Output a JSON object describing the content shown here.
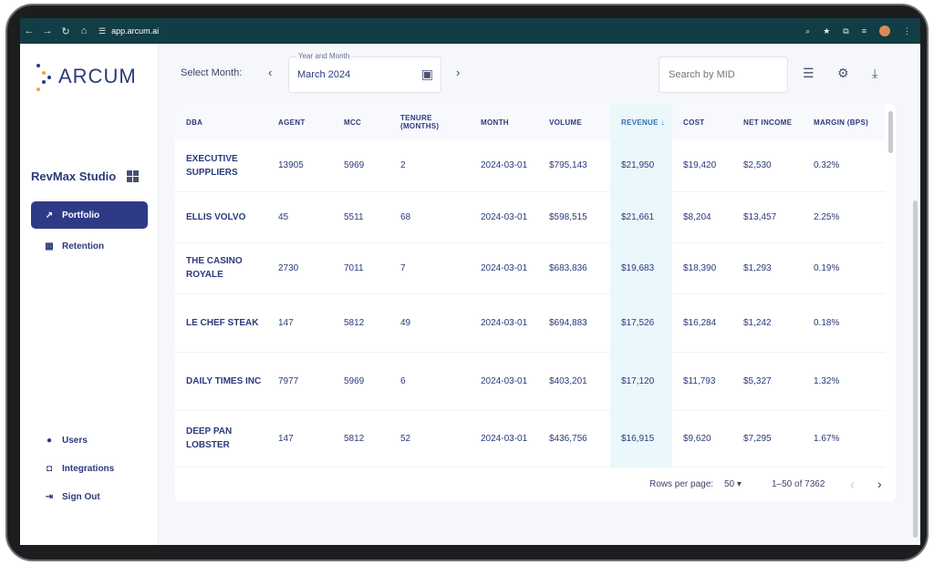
{
  "browser": {
    "url": "app.arcum.ai",
    "icons": [
      "back-icon",
      "forward-icon",
      "reload-icon",
      "home-icon",
      "site-info-icon",
      "zoom-icon",
      "star-icon",
      "extensions-icon",
      "media-icon",
      "profile-avatar",
      "more-icon"
    ]
  },
  "brand": {
    "logo_text": "ARCUM",
    "accent": "#2b3a7a",
    "dots": [
      "#2b3a7a",
      "#f2a33a",
      "#2b3a7a",
      "#f2a33a"
    ]
  },
  "sidebar": {
    "studio_name": "RevMax Studio",
    "nav": [
      {
        "label": "Portfolio",
        "icon": "trend-icon",
        "active": true
      },
      {
        "label": "Retention",
        "icon": "bar-chart-icon",
        "active": false
      }
    ],
    "bottom": [
      {
        "label": "Users",
        "icon": "user-icon"
      },
      {
        "label": "Integrations",
        "icon": "integrations-icon"
      },
      {
        "label": "Sign Out",
        "icon": "sign-out-icon"
      }
    ]
  },
  "toolbar": {
    "select_label": "Select Month:",
    "month_field_label": "Year and Month",
    "month_value": "March 2024",
    "search_placeholder": "Search by MID"
  },
  "table": {
    "columns": [
      {
        "key": "dba",
        "label": "DBA"
      },
      {
        "key": "agent",
        "label": "AGENT"
      },
      {
        "key": "mcc",
        "label": "MCC"
      },
      {
        "key": "tenure",
        "label": "TENURE (MONTHS)"
      },
      {
        "key": "month",
        "label": "MONTH"
      },
      {
        "key": "volume",
        "label": "VOLUME"
      },
      {
        "key": "revenue",
        "label": "REVENUE",
        "sorted": "desc"
      },
      {
        "key": "cost",
        "label": "COST"
      },
      {
        "key": "net_income",
        "label": "NET INCOME"
      },
      {
        "key": "margin",
        "label": "MARGIN (BPS)"
      }
    ],
    "rows": [
      {
        "dba": "EXECUTIVE SUPPLIERS",
        "agent": "13905",
        "mcc": "5969",
        "tenure": "2",
        "month": "2024-03-01",
        "volume": "$795,143",
        "revenue": "$21,950",
        "cost": "$19,420",
        "net_income": "$2,530",
        "margin": "0.32%"
      },
      {
        "dba": "ELLIS VOLVO",
        "agent": "45",
        "mcc": "5511",
        "tenure": "68",
        "month": "2024-03-01",
        "volume": "$598,515",
        "revenue": "$21,661",
        "cost": "$8,204",
        "net_income": "$13,457",
        "margin": "2.25%"
      },
      {
        "dba": "THE CASINO ROYALE",
        "agent": "2730",
        "mcc": "7011",
        "tenure": "7",
        "month": "2024-03-01",
        "volume": "$683,836",
        "revenue": "$19,683",
        "cost": "$18,390",
        "net_income": "$1,293",
        "margin": "0.19%"
      },
      {
        "dba": "LE CHEF STEAK",
        "agent": "147",
        "mcc": "5812",
        "tenure": "49",
        "month": "2024-03-01",
        "volume": "$694,883",
        "revenue": "$17,526",
        "cost": "$16,284",
        "net_income": "$1,242",
        "margin": "0.18%"
      },
      {
        "dba": "DAILY TIMES INC",
        "agent": "7977",
        "mcc": "5969",
        "tenure": "6",
        "month": "2024-03-01",
        "volume": "$403,201",
        "revenue": "$17,120",
        "cost": "$11,793",
        "net_income": "$5,327",
        "margin": "1.32%"
      },
      {
        "dba": "DEEP PAN LOBSTER",
        "agent": "147",
        "mcc": "5812",
        "tenure": "52",
        "month": "2024-03-01",
        "volume": "$436,756",
        "revenue": "$16,915",
        "cost": "$9,620",
        "net_income": "$7,295",
        "margin": "1.67%"
      }
    ]
  },
  "pagination": {
    "rows_per_page_label": "Rows per page:",
    "rows_per_page": "50",
    "range": "1–50 of 7362"
  }
}
